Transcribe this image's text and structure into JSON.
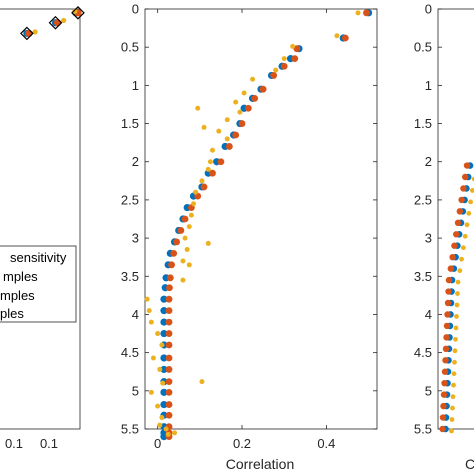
{
  "colors": {
    "axis": "#262626",
    "legend_border": "#262626",
    "series1": "#0072BD",
    "series2": "#D95319",
    "series3": "#EDB120",
    "marker_edge": "#000000"
  },
  "chart_data": [
    {
      "type": "scatter",
      "panel": "left (partially visible)",
      "xlabel": "",
      "ylabel": "",
      "xticks": [
        "0.1",
        "0.1"
      ],
      "legend": {
        "placement": "lower-left",
        "entries": [
          "sensitivity",
          "mples",
          "mples",
          "ples"
        ]
      },
      "series": [
        {
          "marker": "circle",
          "x": [
            0.06,
            0.12,
            0.148,
            0.168
          ],
          "y": [
            0.45,
            0.32,
            0.18,
            0.05
          ]
        },
        {
          "marker": "circle",
          "x": [
            0.063,
            0.122,
            0.15,
            0.17
          ],
          "y": [
            0.45,
            0.32,
            0.18,
            0.05
          ]
        },
        {
          "marker": "circle",
          "x": [
            0.066,
            0.128,
            0.156,
            0.167
          ],
          "y": [
            0.42,
            0.3,
            0.15,
            0.03
          ]
        },
        {
          "marker": "diamond-outline",
          "x": [
            0.06,
            0.12,
            0.148,
            0.17
          ],
          "y": [
            0.45,
            0.32,
            0.18,
            0.05
          ]
        }
      ]
    },
    {
      "type": "scatter",
      "panel": "center",
      "xlabel": "Correlation",
      "ylabel": "",
      "xlim": [
        -0.03,
        0.52
      ],
      "ylim": [
        0,
        5.5
      ],
      "y_reversed": true,
      "xticks": [
        "0",
        "0.2",
        "0.4"
      ],
      "xtick_values": [
        0,
        0.2,
        0.4
      ],
      "yticks": [
        "0",
        "0.5",
        "1",
        "1.5",
        "2",
        "2.5",
        "3",
        "3.5",
        "4",
        "4.5",
        "5",
        "5.5"
      ],
      "ytick_values": [
        0,
        0.5,
        1,
        1.5,
        2,
        2.5,
        3,
        3.5,
        4,
        4.5,
        5,
        5.5
      ],
      "series": [
        {
          "x": [
            0.5,
            0.44,
            0.335,
            0.315,
            0.295,
            0.27,
            0.245,
            0.225,
            0.205,
            0.195,
            0.18,
            0.16,
            0.14,
            0.12,
            0.105,
            0.085,
            0.07,
            0.06,
            0.05,
            0.04,
            0.03,
            0.025,
            0.02,
            0.018,
            0.015,
            0.015,
            0.015,
            0.015,
            0.015,
            0.015,
            0.015,
            0.015,
            0.015,
            0.015,
            0.015,
            0.015,
            0.015,
            0.015
          ],
          "y": [
            0.05,
            0.38,
            0.52,
            0.65,
            0.75,
            0.87,
            1.05,
            1.17,
            1.3,
            1.5,
            1.65,
            1.8,
            2.0,
            2.15,
            2.33,
            2.45,
            2.6,
            2.75,
            2.9,
            3.05,
            3.2,
            3.35,
            3.52,
            3.65,
            3.8,
            3.95,
            4.1,
            4.25,
            4.4,
            4.57,
            4.72,
            4.88,
            5.02,
            5.18,
            5.32,
            5.47,
            5.55,
            5.6
          ]
        },
        {
          "x": [
            0.495,
            0.445,
            0.33,
            0.325,
            0.3,
            0.275,
            0.25,
            0.23,
            0.215,
            0.2,
            0.185,
            0.17,
            0.15,
            0.13,
            0.11,
            0.095,
            0.08,
            0.065,
            0.055,
            0.045,
            0.038,
            0.033,
            0.03,
            0.028,
            0.027,
            0.027,
            0.027,
            0.027,
            0.027,
            0.027,
            0.027,
            0.027,
            0.027,
            0.027,
            0.027,
            0.027,
            0.027,
            0.027
          ],
          "y": [
            0.05,
            0.38,
            0.52,
            0.65,
            0.75,
            0.87,
            1.05,
            1.17,
            1.3,
            1.5,
            1.65,
            1.8,
            2.0,
            2.15,
            2.33,
            2.45,
            2.6,
            2.75,
            2.9,
            3.05,
            3.2,
            3.35,
            3.52,
            3.65,
            3.8,
            3.95,
            4.1,
            4.25,
            4.4,
            4.57,
            4.72,
            4.88,
            5.02,
            5.18,
            5.32,
            5.47,
            5.55,
            5.6
          ]
        },
        {
          "x": [
            0.475,
            0.425,
            0.32,
            0.3,
            0.28,
            0.225,
            0.205,
            0.185,
            0.195,
            0.165,
            0.145,
            0.165,
            0.13,
            0.125,
            0.12,
            0.105,
            0.09,
            0.085,
            0.08,
            0.075,
            0.065,
            0.07,
            0.06,
            0.06,
            -0.025,
            -0.02,
            -0.015,
            0.0,
            0.01,
            -0.01,
            0.005,
            0.012,
            -0.015,
            0.0,
            0.01,
            0.005,
            0.02,
            0.025,
            0.12,
            0.11,
            0.095,
            0.075,
            0.105,
            0.04
          ],
          "y": [
            0.05,
            0.35,
            0.49,
            0.65,
            0.8,
            0.92,
            1.1,
            1.22,
            1.35,
            1.45,
            1.6,
            1.7,
            1.85,
            2.0,
            2.1,
            2.25,
            2.4,
            2.55,
            2.7,
            2.85,
            3.0,
            3.15,
            3.3,
            3.55,
            3.8,
            3.95,
            4.1,
            4.25,
            4.4,
            4.57,
            4.72,
            4.9,
            5.02,
            5.2,
            5.35,
            5.45,
            5.5,
            5.57,
            3.07,
            1.55,
            1.3,
            3.35,
            4.88,
            5.55
          ]
        }
      ]
    },
    {
      "type": "scatter",
      "panel": "right (partially visible)",
      "xlabel": "C",
      "ylabel": "",
      "ylim": [
        0,
        5.5
      ],
      "y_reversed": true,
      "yticks": [
        "0",
        "0.5",
        "1",
        "1.5",
        "2",
        "2.5",
        "3",
        "3.5",
        "4",
        "4.5",
        "5",
        "5.5"
      ],
      "ytick_values": [
        0,
        0.5,
        1,
        1.5,
        2,
        2.5,
        3,
        3.5,
        4,
        4.5,
        5,
        5.5
      ]
    }
  ]
}
